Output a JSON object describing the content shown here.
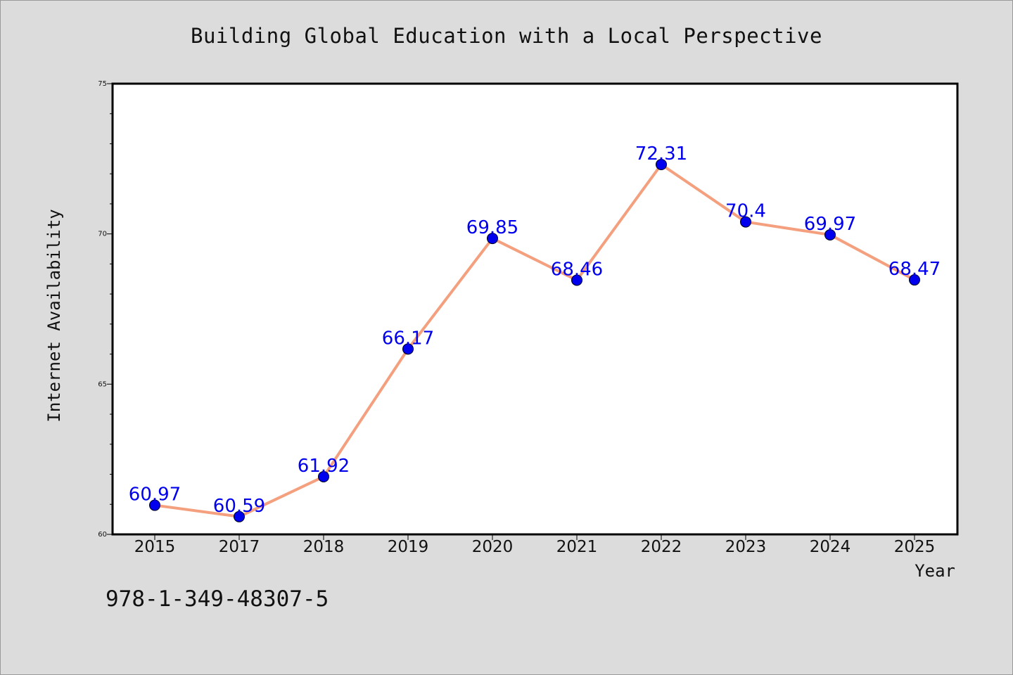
{
  "isbn_text": "978-1-349-48307-5",
  "chart_data": {
    "type": "line",
    "title": "Building Global Education with a Local Perspective",
    "xlabel": "Year",
    "ylabel": "Internet Availability",
    "categories": [
      "2015",
      "2017",
      "2018",
      "2019",
      "2020",
      "2021",
      "2022",
      "2023",
      "2024",
      "2025"
    ],
    "values": [
      60.97,
      60.59,
      61.92,
      66.17,
      69.85,
      68.46,
      72.31,
      70.4,
      69.97,
      68.47
    ],
    "data_labels": [
      "60.97",
      "60.59",
      "61.92",
      "66.17",
      "69.85",
      "68.46",
      "72.31",
      "70.4",
      "69.97",
      "68.47"
    ],
    "ylim": [
      60,
      75
    ],
    "yticks": [
      60,
      65,
      70,
      75
    ],
    "grid": false,
    "line_color": "#f4a07e",
    "marker_color": "#0000ee",
    "label_color": "#0000ee",
    "plot_background": "#ffffff",
    "figure_background": "#dcdcdc"
  }
}
